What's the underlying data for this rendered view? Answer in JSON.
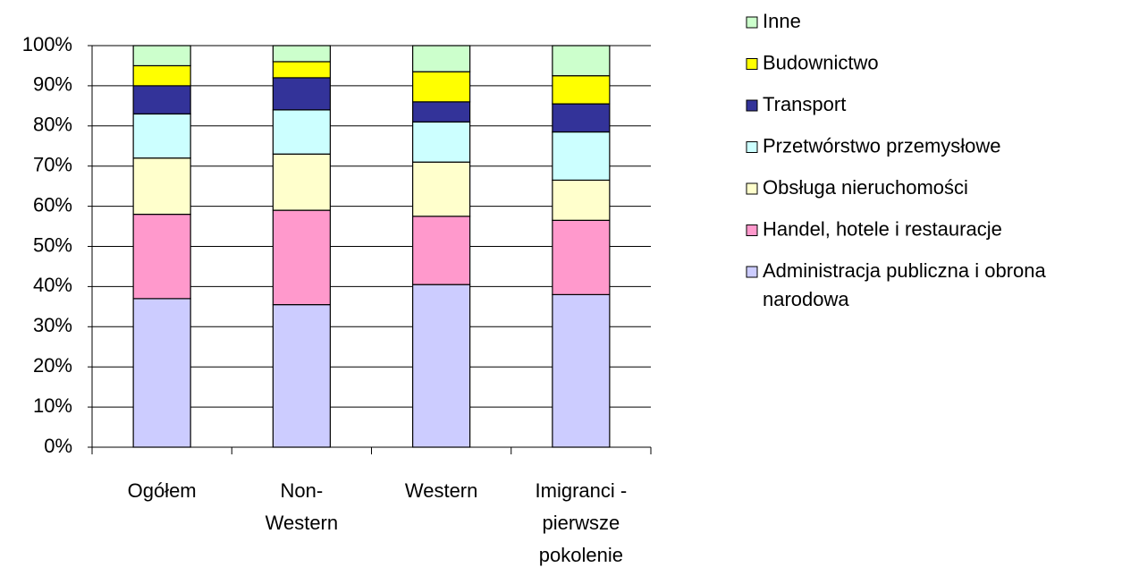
{
  "chart_data": {
    "type": "stacked_bar_100",
    "categories": [
      "Ogółem",
      "Non-Western",
      "Western",
      "Imigranci - pierwsze pokolenie"
    ],
    "series": [
      {
        "name": "Administracja publiczna i obrona narodowa",
        "color": "#ccccff",
        "values": [
          37,
          35.5,
          40.5,
          38
        ]
      },
      {
        "name": "Handel, hotele i restauracje",
        "color": "#ff99cc",
        "values": [
          21,
          23.5,
          17,
          18.5
        ]
      },
      {
        "name": "Obsługa nieruchomości",
        "color": "#ffffcc",
        "values": [
          14,
          14,
          13.5,
          10
        ]
      },
      {
        "name": "Przetwórstwo przemysłowe",
        "color": "#ccffff",
        "values": [
          11,
          11,
          10,
          12
        ]
      },
      {
        "name": "Transport",
        "color": "#333399",
        "values": [
          7,
          8,
          5,
          7
        ]
      },
      {
        "name": "Budownictwo",
        "color": "#ffff00",
        "values": [
          5,
          4,
          7.5,
          7
        ]
      },
      {
        "name": "Inne",
        "color": "#ccffcc",
        "values": [
          5,
          4,
          6.5,
          7.5
        ]
      }
    ],
    "ylim": [
      0,
      100
    ],
    "yticks": [
      {
        "value": 0,
        "label": "0%"
      },
      {
        "value": 10,
        "label": "10%"
      },
      {
        "value": 20,
        "label": "20%"
      },
      {
        "value": 30,
        "label": "30%"
      },
      {
        "value": 40,
        "label": "40%"
      },
      {
        "value": 50,
        "label": "50%"
      },
      {
        "value": 60,
        "label": "60%"
      },
      {
        "value": 70,
        "label": "70%"
      },
      {
        "value": 80,
        "label": "80%"
      },
      {
        "value": 90,
        "label": "90%"
      },
      {
        "value": 100,
        "label": "100%"
      }
    ],
    "grid": true,
    "legend": "right"
  }
}
